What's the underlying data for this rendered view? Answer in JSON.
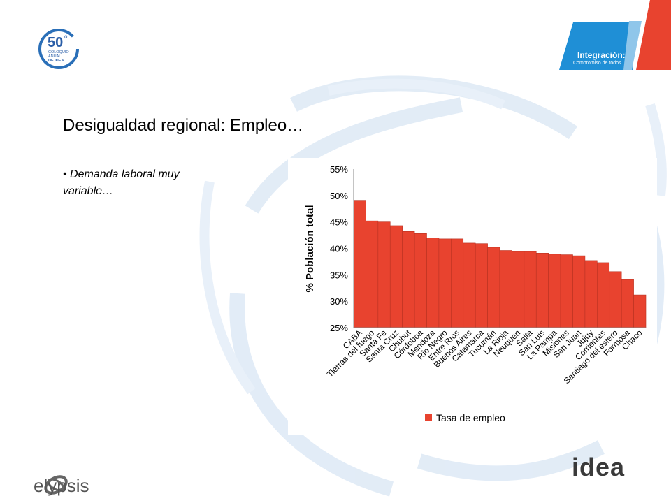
{
  "slide": {
    "title": "Desigualdad regional: Empleo…",
    "bullet": "• Demanda laboral muy variable…"
  },
  "logo_top_left": {
    "number": "50",
    "superscript": "o",
    "line1": "COLOQUIO",
    "line2": "ANUAL",
    "line3": "DE IDEA"
  },
  "banner": {
    "title": "Integración:",
    "subtitle": "Compromiso de todos",
    "colors": {
      "blue": "#1f8fd6",
      "red": "#e8432f"
    }
  },
  "footer": {
    "left_logo": "elypsis",
    "right_logo": "idea"
  },
  "chart_data": {
    "type": "bar",
    "ylabel": "% Población total",
    "ylim": [
      25,
      55
    ],
    "yticks": [
      "25%",
      "30%",
      "35%",
      "40%",
      "45%",
      "50%",
      "55%"
    ],
    "grid": false,
    "legend": "bottom-left",
    "series": [
      {
        "name": "Tasa de empleo",
        "color": "#e8432f",
        "values": [
          49.1,
          45.2,
          45.0,
          44.3,
          43.2,
          42.8,
          42.0,
          41.8,
          41.8,
          41.0,
          40.9,
          40.2,
          39.6,
          39.4,
          39.4,
          39.1,
          38.9,
          38.8,
          38.6,
          37.7,
          37.3,
          35.6,
          34.1,
          31.2
        ]
      }
    ],
    "categories": [
      "CABA",
      "Tierras del fuego",
      "Santa Fe",
      "Santa Cruz",
      "Chubut",
      "Córdoboa",
      "Mendoza",
      "Río Negro",
      "Entre Ríos",
      "Buenos Aires",
      "Catamarca",
      "Tucumán",
      "La Rioja",
      "Neuquén",
      "Salta",
      "San Luis",
      "La Pampa",
      "Misiones",
      "San Juan",
      "Jujuy",
      "Corrientes",
      "Santiago del estero",
      "Formosa",
      "Chaco"
    ]
  }
}
